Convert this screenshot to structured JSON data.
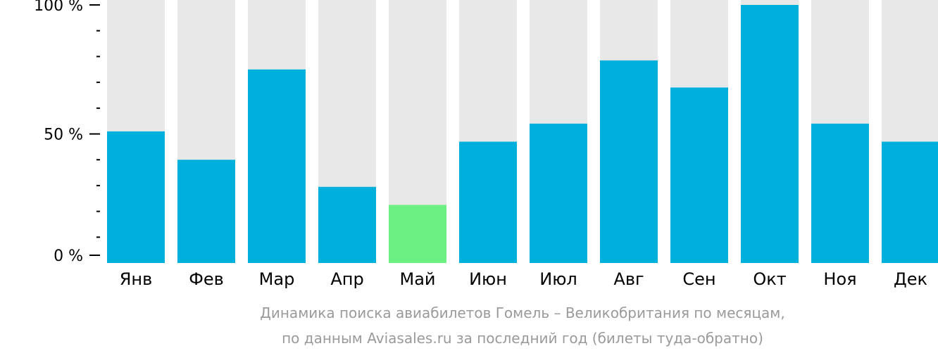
{
  "chart_data": {
    "type": "bar",
    "categories": [
      "Янв",
      "Фев",
      "Мар",
      "Апр",
      "Май",
      "Июн",
      "Июл",
      "Авг",
      "Сен",
      "Окт",
      "Ноя",
      "Дек"
    ],
    "values": [
      51,
      40,
      75,
      29.5,
      22.5,
      47,
      54,
      78.5,
      68,
      100,
      54,
      47
    ],
    "ylim": [
      0,
      100
    ],
    "yticks": [
      {
        "value": 0,
        "label": "0 %"
      },
      {
        "value": 50,
        "label": "50 %"
      },
      {
        "value": 100,
        "label": "100 %"
      }
    ],
    "minor_ticks": [
      10,
      20,
      30,
      40,
      60,
      70,
      80,
      90
    ],
    "highlight_index": 4,
    "title": "",
    "xlabel": "",
    "ylabel": "",
    "colors": {
      "bar": "#00b0dc",
      "highlight": "#6cf082",
      "background_bar": "#e8e8e8",
      "axis": "#000000",
      "caption": "#9a9a9a"
    }
  },
  "caption": {
    "line1": "Динамика поиска авиабилетов Гомель – Великобритания по месяцам,",
    "line2": "по данным Aviasales.ru за последний год (билеты туда-обратно)"
  }
}
